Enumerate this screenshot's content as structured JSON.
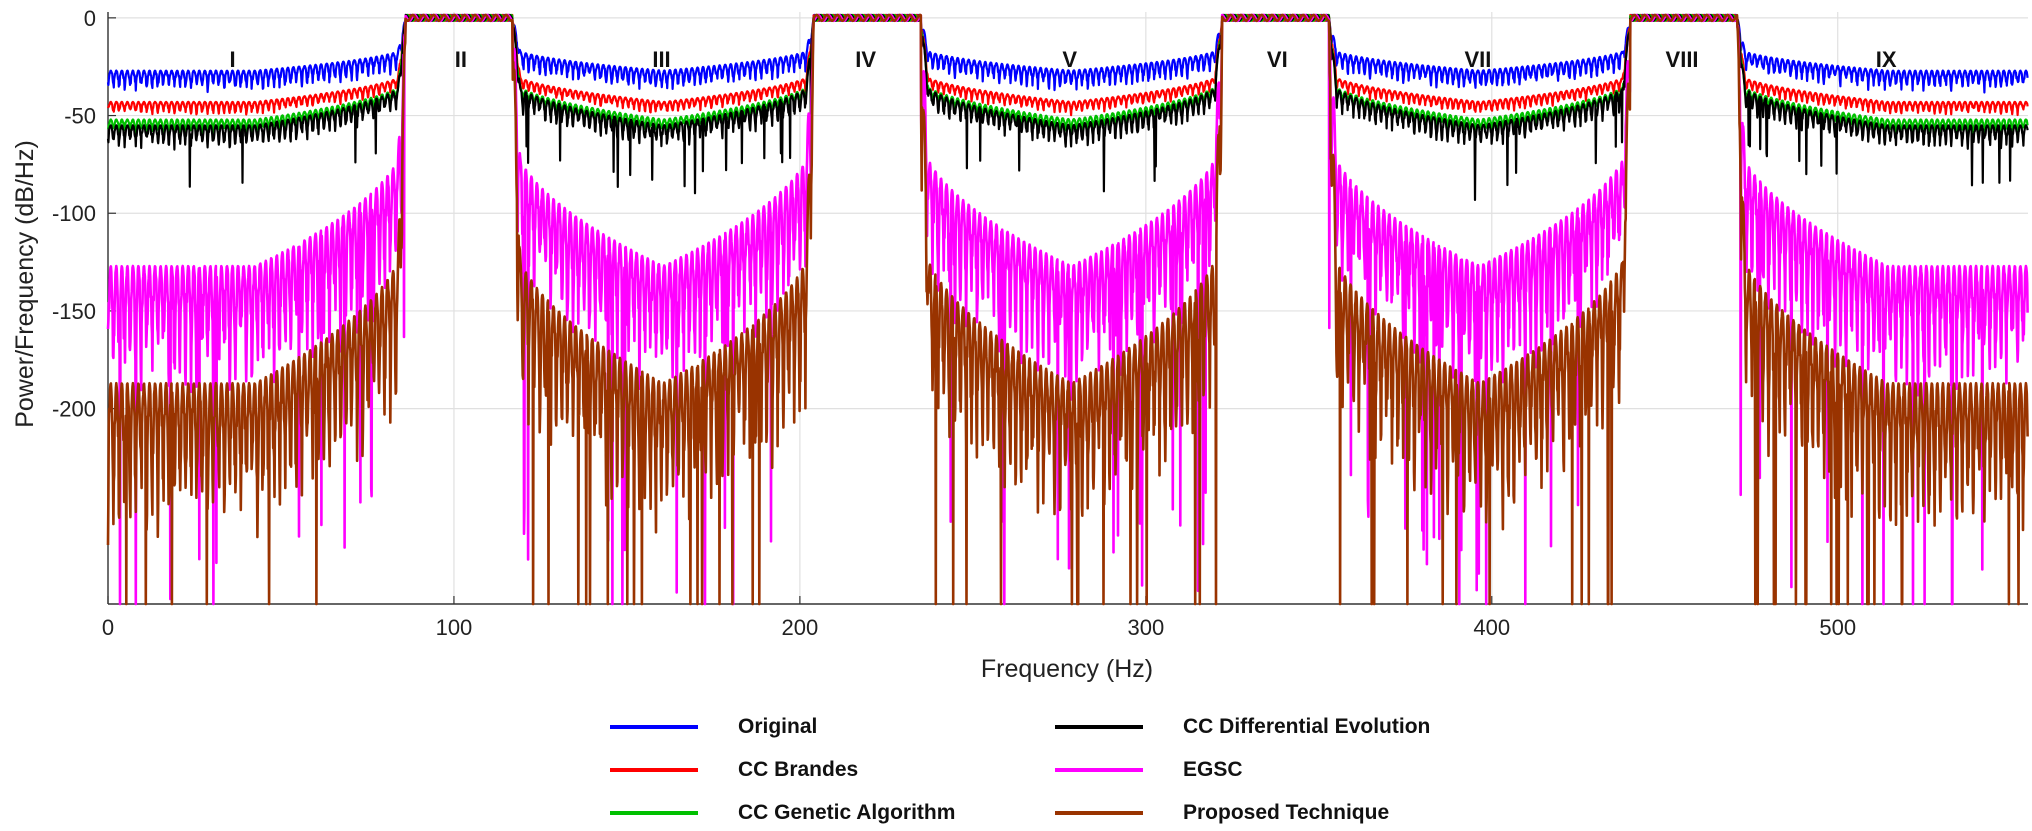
{
  "chart_data": {
    "type": "line",
    "title": "",
    "xlabel": "Frequency (Hz)",
    "ylabel": "Power/Frequency (dB/Hz)",
    "xlim": [
      0,
      555
    ],
    "ylim": [
      -300,
      3
    ],
    "x_ticks": [
      0,
      100,
      200,
      300,
      400,
      500
    ],
    "y_ticks": [
      0,
      -50,
      -100,
      -150,
      -200
    ],
    "grid": true,
    "legend_position": "bottom",
    "passbands": [
      [
        86,
        117
      ],
      [
        204,
        235
      ],
      [
        322,
        353
      ],
      [
        440,
        471
      ]
    ],
    "regions": [
      {
        "label": "I",
        "x": 36
      },
      {
        "label": "II",
        "x": 102
      },
      {
        "label": "III",
        "x": 160
      },
      {
        "label": "IV",
        "x": 219
      },
      {
        "label": "V",
        "x": 278
      },
      {
        "label": "VI",
        "x": 338
      },
      {
        "label": "VII",
        "x": 396
      },
      {
        "label": "VIII",
        "x": 455
      },
      {
        "label": "IX",
        "x": 514
      }
    ],
    "series": [
      {
        "name": "Original",
        "color": "#0000ff",
        "edge_level": -15,
        "center_level": -27,
        "ripple": 8
      },
      {
        "name": "CC Brandes",
        "color": "#ff0000",
        "edge_level": -28,
        "center_level": -43,
        "ripple": 5
      },
      {
        "name": "CC Genetic Algorithm",
        "color": "#00c000",
        "edge_level": -32,
        "center_level": -52,
        "ripple": 6
      },
      {
        "name": "CC Differential Evolution",
        "color": "#000000",
        "edge_level": -32,
        "center_level": -55,
        "ripple": 9
      },
      {
        "name": "EGSC",
        "color": "#ff00ff",
        "edge_level": -60,
        "center_level": -127,
        "ripple": 50
      },
      {
        "name": "Proposed Technique",
        "color": "#993300",
        "edge_level": -110,
        "center_level": -187,
        "ripple": 60
      }
    ]
  },
  "legend": {
    "items": [
      {
        "name": "Original",
        "color": "#0000ff"
      },
      {
        "name": "CC Brandes",
        "color": "#ff0000"
      },
      {
        "name": "CC Genetic Algorithm",
        "color": "#00c000"
      },
      {
        "name": "CC Differential Evolution",
        "color": "#000000"
      },
      {
        "name": "EGSC",
        "color": "#ff00ff"
      },
      {
        "name": "Proposed Technique",
        "color": "#993300"
      }
    ]
  }
}
